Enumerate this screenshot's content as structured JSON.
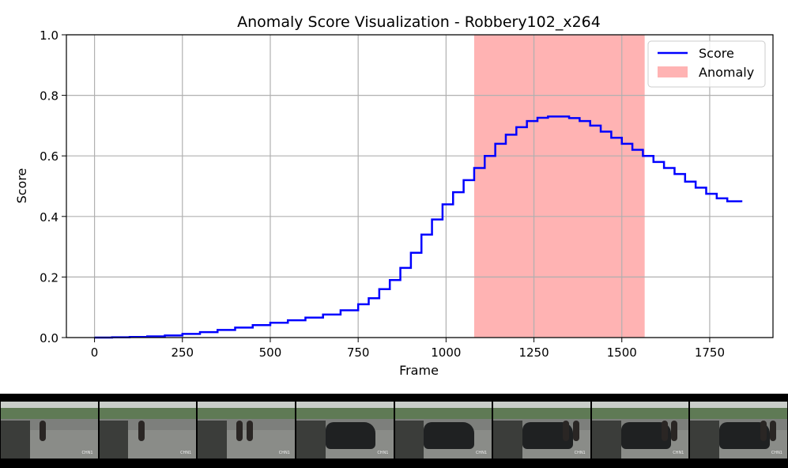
{
  "chart_data": {
    "type": "line",
    "title": "Anomaly Score Visualization - Robbery102_x264",
    "xlabel": "Frame",
    "ylabel": "Score",
    "xlim": [
      -80,
      1930
    ],
    "ylim": [
      0.0,
      1.0
    ],
    "xticks": [
      0,
      250,
      500,
      750,
      1000,
      1250,
      1500,
      1750
    ],
    "yticks": [
      0.0,
      0.2,
      0.4,
      0.6,
      0.8,
      1.0
    ],
    "grid": true,
    "legend_position": "top-right",
    "series": [
      {
        "name": "Score",
        "color": "#0000ff",
        "style": "step",
        "x": [
          0,
          50,
          100,
          150,
          200,
          250,
          300,
          350,
          400,
          450,
          500,
          550,
          600,
          650,
          700,
          750,
          780,
          810,
          840,
          870,
          900,
          930,
          960,
          990,
          1020,
          1050,
          1080,
          1110,
          1140,
          1170,
          1200,
          1230,
          1260,
          1290,
          1320,
          1350,
          1380,
          1410,
          1440,
          1470,
          1500,
          1530,
          1560,
          1590,
          1620,
          1650,
          1680,
          1710,
          1740,
          1770,
          1800,
          1840
        ],
        "values": [
          0.0,
          0.001,
          0.002,
          0.004,
          0.007,
          0.012,
          0.018,
          0.025,
          0.033,
          0.041,
          0.049,
          0.057,
          0.066,
          0.076,
          0.09,
          0.11,
          0.13,
          0.16,
          0.19,
          0.23,
          0.28,
          0.34,
          0.39,
          0.44,
          0.48,
          0.52,
          0.56,
          0.6,
          0.64,
          0.67,
          0.695,
          0.715,
          0.726,
          0.73,
          0.73,
          0.725,
          0.715,
          0.7,
          0.68,
          0.66,
          0.64,
          0.62,
          0.6,
          0.58,
          0.56,
          0.54,
          0.515,
          0.495,
          0.475,
          0.46,
          0.45,
          0.447
        ]
      }
    ],
    "anomaly": {
      "name": "Anomaly",
      "color": "#ffb3b3",
      "x_start": 1080,
      "x_end": 1565
    }
  },
  "filmstrip": {
    "frames": [
      {
        "tag": "CHN1",
        "car": false,
        "people": 1
      },
      {
        "tag": "CHN1",
        "car": false,
        "people": 1
      },
      {
        "tag": "CHN1",
        "car": false,
        "people": 2
      },
      {
        "tag": "CHN1",
        "car": true,
        "people": 0
      },
      {
        "tag": "CHN1",
        "car": true,
        "people": 0
      },
      {
        "tag": "CHN1",
        "car": true,
        "people": 2
      },
      {
        "tag": "CHN1",
        "car": true,
        "people": 2
      },
      {
        "tag": "CHN1",
        "car": true,
        "people": 2
      }
    ]
  }
}
